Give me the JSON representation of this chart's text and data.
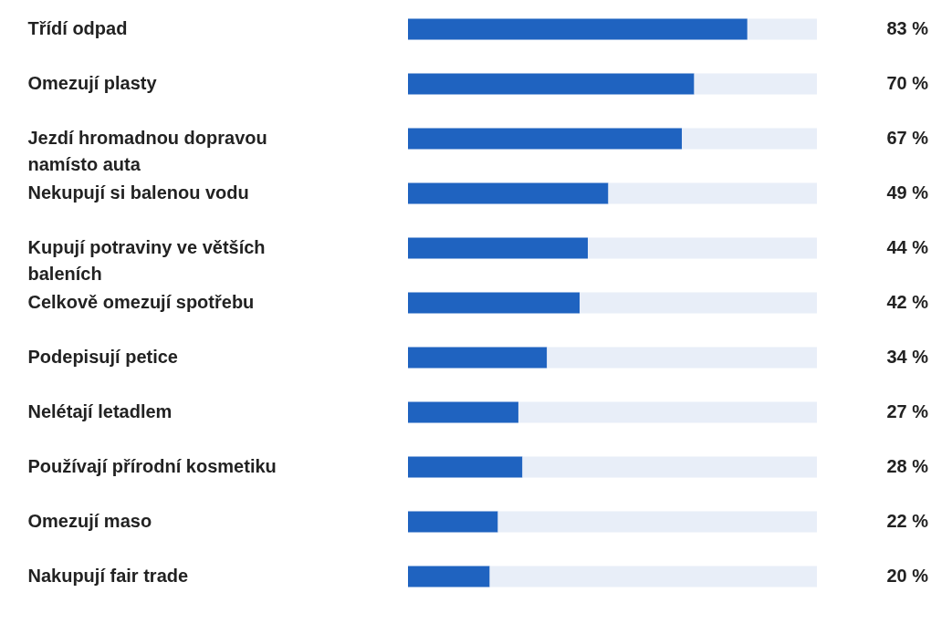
{
  "chart_data": {
    "type": "bar",
    "orientation": "horizontal",
    "stacked": true,
    "categories": [
      "Třídí odpad",
      "Omezují plasty",
      "Jezdí hromadnou dopravou\nnamísto auta",
      "Nekupují si balenou vodu",
      "Kupují potraviny ve větších\nbaleních",
      "Celkově omezují spotřebu",
      "Podepisují petice",
      "Nelétají letadlem",
      "Používají přírodní kosmetiku",
      "Omezují maso",
      "Nakupují fair trade"
    ],
    "series": [
      {
        "color": "#1f63c0",
        "values": [
          83,
          70,
          67,
          49,
          44,
          42,
          34,
          27,
          28,
          22,
          20
        ],
        "value_labels": [
          "83 %",
          "70 %",
          "67 %",
          "49 %",
          "44 %",
          "42 %",
          "34 %",
          "27 %",
          "28 %",
          "22 %",
          "20 %"
        ]
      },
      {
        "color": "#e8eef8",
        "values": [
          17,
          30,
          33,
          51,
          56,
          58,
          66,
          73,
          72,
          78,
          80
        ]
      }
    ],
    "tick_labels": "y"
  }
}
